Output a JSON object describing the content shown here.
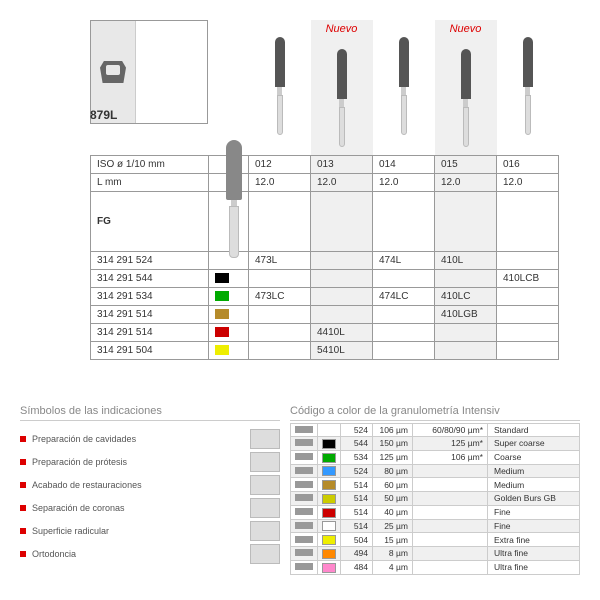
{
  "model": "879L",
  "nuevo": "Nuevo",
  "headers": {
    "iso": "ISO ø 1/10 mm",
    "l": "L mm",
    "fg": "FG"
  },
  "cols": [
    "012",
    "013",
    "014",
    "015",
    "016"
  ],
  "lvals": [
    "12.0",
    "12.0",
    "12.0",
    "12.0",
    "12.0"
  ],
  "rows": [
    {
      "code": "314 291 524",
      "color": "",
      "v": [
        "473L",
        "",
        "474L",
        "410L",
        ""
      ]
    },
    {
      "code": "314 291 544",
      "color": "#000",
      "v": [
        "",
        "",
        "",
        "",
        "410LCB"
      ]
    },
    {
      "code": "314 291 534",
      "color": "#0a0",
      "v": [
        "473LC",
        "",
        "474LC",
        "410LC",
        ""
      ]
    },
    {
      "code": "314 291 514",
      "color": "#b58b2a",
      "v": [
        "",
        "",
        "",
        "410LGB",
        ""
      ]
    },
    {
      "code": "314 291 514",
      "color": "#c00",
      "v": [
        "",
        "4410L",
        "",
        "",
        ""
      ]
    },
    {
      "code": "314 291 504",
      "color": "#ee0",
      "v": [
        "",
        "5410L",
        "",
        "",
        ""
      ]
    }
  ],
  "legend1": {
    "title": "Símbolos de las indicaciones",
    "items": [
      "Preparación de cavidades",
      "Preparación de prótesis",
      "Acabado de restauraciones",
      "Separación de coronas",
      "Superficie radicular",
      "Ortodoncia"
    ]
  },
  "legend2": {
    "title": "Código a color de la granulometría Intensiv",
    "rows": [
      {
        "bar": "#999",
        "sq": "",
        "c": "524",
        "um": "106 µm",
        "r": "60/80/90 µm*",
        "n": "Standard"
      },
      {
        "bar": "#999",
        "sq": "#000",
        "c": "544",
        "um": "150 µm",
        "r": "125 µm*",
        "n": "Super coarse"
      },
      {
        "bar": "#999",
        "sq": "#0a0",
        "c": "534",
        "um": "125 µm",
        "r": "106 µm*",
        "n": "Coarse"
      },
      {
        "bar": "#999",
        "sq": "#39f",
        "c": "524",
        "um": "80 µm",
        "r": "",
        "n": "Medium"
      },
      {
        "bar": "#999",
        "sq": "#b58b2a",
        "c": "514",
        "um": "60 µm",
        "r": "",
        "n": "Medium"
      },
      {
        "bar": "#999",
        "sq": "#cc0",
        "c": "514",
        "um": "50 µm",
        "r": "",
        "n": "Golden Burs GB"
      },
      {
        "bar": "#999",
        "sq": "#c00",
        "c": "514",
        "um": "40 µm",
        "r": "",
        "n": "Fine"
      },
      {
        "bar": "#999",
        "sq": "#fff",
        "c": "514",
        "um": "25 µm",
        "r": "",
        "n": "Fine"
      },
      {
        "bar": "#999",
        "sq": "#ee0",
        "c": "504",
        "um": "15 µm",
        "r": "",
        "n": "Extra fine"
      },
      {
        "bar": "#999",
        "sq": "#f80",
        "c": "494",
        "um": "8 µm",
        "r": "",
        "n": "Ultra fine"
      },
      {
        "bar": "#999",
        "sq": "#f8c",
        "c": "484",
        "um": "4 µm",
        "r": "",
        "n": "Ultra fine"
      }
    ]
  }
}
